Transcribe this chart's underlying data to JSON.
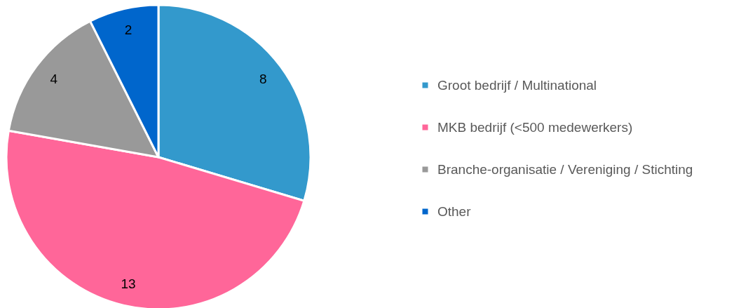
{
  "chart_data": {
    "type": "pie",
    "categories": [
      "Groot bedrijf / Multinational",
      "MKB bedrijf (<500 medewerkers)",
      "Branche-organisatie / Vereniging / Stichting",
      "Other"
    ],
    "values": [
      8,
      13,
      4,
      2
    ],
    "colors": [
      "#3399cc",
      "#ff6699",
      "#999999",
      "#0066cc"
    ],
    "data_labels": true,
    "legend": "right"
  }
}
